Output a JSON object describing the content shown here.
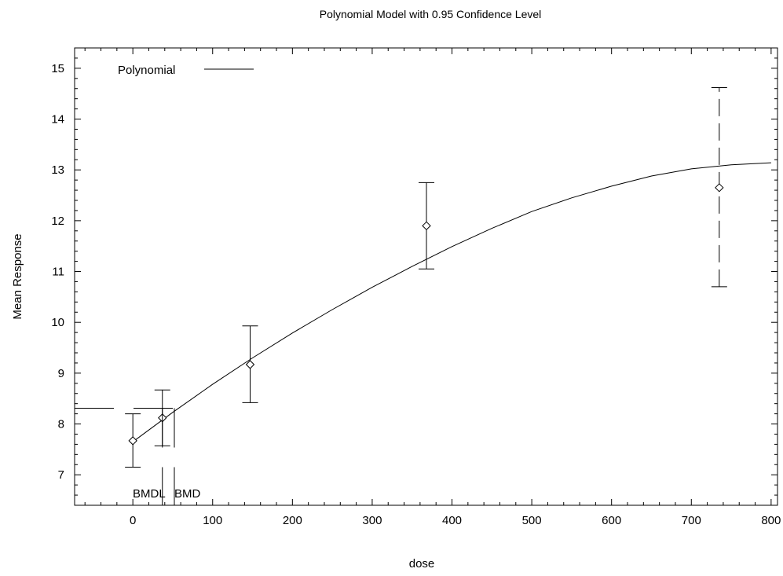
{
  "chart_data": {
    "type": "scatter",
    "title": "Polynomial Model with 0.95 Confidence Level",
    "xlabel": "dose",
    "ylabel": "Mean Response",
    "xlim": [
      -73,
      808
    ],
    "ylim": [
      6.4,
      15.4
    ],
    "x_ticks": [
      0,
      100,
      200,
      300,
      400,
      500,
      600,
      700,
      800
    ],
    "y_ticks": [
      7,
      8,
      9,
      10,
      11,
      12,
      13,
      14,
      15
    ],
    "grid": false,
    "legend": {
      "position": "top-left",
      "entries": [
        {
          "label": "Polynomial",
          "style": "solid"
        }
      ]
    },
    "series": [
      {
        "name": "Polynomial",
        "kind": "fitted-curve",
        "x": [
          0,
          50,
          100,
          150,
          200,
          250,
          300,
          350,
          400,
          450,
          500,
          550,
          600,
          650,
          700,
          750,
          800
        ],
        "y": [
          7.65,
          8.23,
          8.78,
          9.3,
          9.79,
          10.25,
          10.69,
          11.1,
          11.49,
          11.85,
          12.18,
          12.45,
          12.68,
          12.88,
          13.02,
          13.1,
          13.14
        ]
      }
    ],
    "observations": {
      "x": [
        0,
        37,
        147,
        368,
        735
      ],
      "mean": [
        7.67,
        8.12,
        9.17,
        11.9,
        12.65
      ],
      "lower": [
        7.15,
        7.57,
        8.42,
        11.05,
        10.7
      ],
      "upper": [
        8.2,
        8.67,
        9.93,
        12.75,
        14.62
      ]
    },
    "bmd": {
      "bmr_response": 8.31,
      "bmdl": 37,
      "bmd": 52,
      "bmdl_label": "BMDL",
      "bmd_label": "BMD"
    }
  }
}
